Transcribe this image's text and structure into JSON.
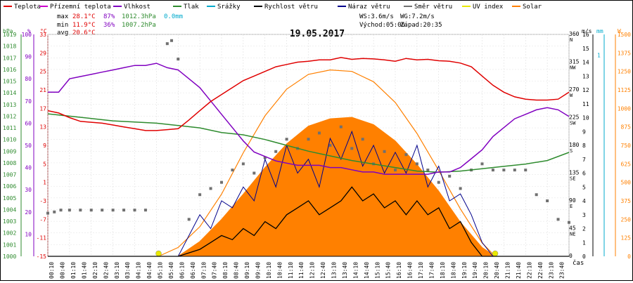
{
  "chart_data": {
    "type": "line",
    "date": "19.05.2017",
    "legend": [
      {
        "name": "Teplota",
        "color": "#e00000"
      },
      {
        "name": "Přízemní teplota",
        "color": "#cc00cc"
      },
      {
        "name": "Vlhkost",
        "color": "#8000c0"
      },
      {
        "name": "Tlak",
        "color": "#2e8b2e"
      },
      {
        "name": "Srážky",
        "color": "#00aacc"
      },
      {
        "name": "Rychlost větru",
        "color": "#000000"
      },
      {
        "name": "Náraz větru",
        "color": "#00008b"
      },
      {
        "name": "Směr větru",
        "color": "#707070"
      },
      {
        "name": "UV index",
        "color": "#e8e800"
      },
      {
        "name": "Solar",
        "color": "#ff8000"
      }
    ],
    "stats": {
      "max_label": "max",
      "max_t": "28.1°C",
      "max_h": "87%",
      "max_p": "1012.3hPa",
      "max_r": "0.0mm",
      "min_label": "min",
      "min_t": "11.9°C",
      "min_h": "36%",
      "min_p": "1007.2hPa",
      "avg_label": "avg",
      "avg_t": "20.6°C",
      "ws": "WS:3.6m/s",
      "wg": "WG:7.2m/s",
      "sunrise": "Východ:05:06",
      "sunset": "Západ:20:35"
    },
    "axes": {
      "hpa": {
        "unit": "hPa",
        "ticks": [
          "1019",
          "1018",
          "1017",
          "1016",
          "1015",
          "1014",
          "1013",
          "1012",
          "1011",
          "1010",
          "1009",
          "1008",
          "1007",
          "1006",
          "1005",
          "1004",
          "1003",
          "1002",
          "1001",
          "1000"
        ],
        "color": "#2e8b2e"
      },
      "pct": {
        "unit": "%",
        "ticks": [
          "100",
          "90",
          "80",
          "70",
          "60",
          "50",
          "40",
          "30",
          "20",
          "10"
        ],
        "color": "#8000c0"
      },
      "temp": {
        "unit": "°C",
        "ticks": [
          "33",
          "29",
          "25",
          "21",
          "17",
          "13",
          "9",
          "5",
          "1",
          "-3",
          "-7",
          "-11",
          "-15"
        ],
        "color": "#e00000"
      },
      "ms": {
        "unit": "m/s",
        "ticks": [
          "16",
          "15",
          "14",
          "13",
          "12",
          "11",
          "10",
          "9",
          "8",
          "7",
          "6",
          "5",
          "4",
          "3",
          "2",
          "1",
          "0"
        ],
        "color": "#000000"
      },
      "dir": {
        "ticks": [
          [
            "360",
            "N"
          ],
          [
            "315",
            "NW"
          ],
          [
            "270",
            "W"
          ],
          [
            "225",
            "SW"
          ],
          [
            "180",
            "S"
          ],
          [
            "135",
            "SE"
          ],
          [
            "90",
            "E"
          ],
          [
            "45",
            "NE"
          ],
          [
            "0",
            ""
          ]
        ],
        "color": "#000000"
      },
      "mm": {
        "unit": "mm",
        "ticks": [
          "1"
        ],
        "color": "#00aacc"
      },
      "w": {
        "unit": "W",
        "ticks": [
          "1500",
          "1375",
          "1250",
          "1125",
          "1000",
          "875",
          "750",
          "625",
          "500",
          "375",
          "250",
          "125",
          "0"
        ],
        "color": "#ff8000"
      },
      "time_label": "čas",
      "times": [
        "00:10",
        "00:40",
        "01:10",
        "01:40",
        "02:10",
        "02:40",
        "03:10",
        "03:40",
        "04:10",
        "04:40",
        "05:10",
        "05:40",
        "06:10",
        "06:40",
        "07:10",
        "07:40",
        "08:10",
        "08:40",
        "09:10",
        "09:40",
        "10:10",
        "10:40",
        "11:10",
        "11:40",
        "12:10",
        "12:40",
        "13:10",
        "13:40",
        "14:10",
        "14:40",
        "15:10",
        "15:40",
        "16:10",
        "16:40",
        "17:10",
        "17:40",
        "18:10",
        "18:40",
        "19:10",
        "19:40",
        "20:10",
        "20:40",
        "21:10",
        "21:40",
        "22:10",
        "22:40",
        "23:10",
        "23:40"
      ]
    },
    "x_range_hours": [
      0,
      24
    ],
    "series": [
      {
        "name": "Teplota",
        "unit": "°C",
        "x": [
          0,
          0.5,
          1,
          1.5,
          2,
          2.5,
          3,
          3.5,
          4,
          4.5,
          5,
          5.5,
          6,
          6.5,
          7,
          7.5,
          8,
          8.5,
          9,
          9.5,
          10,
          10.5,
          11,
          11.5,
          12,
          12.5,
          13,
          13.5,
          14,
          14.5,
          15,
          15.5,
          16,
          16.5,
          17,
          17.5,
          18,
          18.5,
          19,
          19.5,
          20,
          20.5,
          21,
          21.5,
          22,
          22.5,
          23,
          23.5,
          24
        ],
        "values": [
          16.5,
          16,
          15,
          14.2,
          14,
          13.8,
          13.4,
          13,
          12.6,
          12.2,
          12.2,
          12.4,
          12.6,
          14.5,
          16.5,
          18.5,
          20,
          21.5,
          23,
          24,
          25,
          26,
          26.5,
          27,
          27.2,
          27.5,
          27.5,
          28,
          27.6,
          27.8,
          27.7,
          27.5,
          27.2,
          27.8,
          27.5,
          27.6,
          27.3,
          27.2,
          26.8,
          26,
          24,
          22,
          20.5,
          19.5,
          19,
          18.8,
          18.8,
          19,
          20.5
        ]
      },
      {
        "name": "Vlhkost",
        "unit": "%",
        "x": [
          0,
          0.5,
          1,
          1.5,
          2,
          2.5,
          3,
          3.5,
          4,
          4.5,
          5,
          5.5,
          6,
          6.5,
          7,
          7.5,
          8,
          8.5,
          9,
          9.5,
          10,
          10.5,
          11,
          11.5,
          12,
          12.5,
          13,
          13.5,
          14,
          14.5,
          15,
          15.5,
          16,
          16.5,
          17,
          17.5,
          18,
          18.5,
          19,
          19.5,
          20,
          20.5,
          21,
          21.5,
          22,
          22.5,
          23,
          23.5,
          24
        ],
        "values": [
          74,
          74,
          80,
          81,
          82,
          83,
          84,
          85,
          86,
          86,
          87,
          85,
          84,
          80,
          76,
          70,
          64,
          58,
          52,
          47,
          45,
          43,
          42,
          41,
          41,
          41,
          40,
          40,
          39,
          38,
          38,
          37,
          37,
          37,
          37,
          37,
          38,
          38,
          40,
          44,
          48,
          54,
          58,
          62,
          64,
          66,
          67,
          66,
          63
        ]
      },
      {
        "name": "Tlak",
        "unit": "hPa",
        "x": [
          0,
          1,
          2,
          3,
          4,
          5,
          6,
          7,
          8,
          9,
          10,
          11,
          12,
          13,
          14,
          15,
          16,
          17,
          18,
          19,
          20,
          21,
          22,
          23,
          24
        ],
        "values": [
          1012.2,
          1012.0,
          1011.8,
          1011.6,
          1011.5,
          1011.4,
          1011.2,
          1011.0,
          1010.6,
          1010.4,
          1010.0,
          1009.5,
          1009.0,
          1008.6,
          1008.2,
          1007.9,
          1007.6,
          1007.3,
          1007.2,
          1007.3,
          1007.5,
          1007.7,
          1007.9,
          1008.2,
          1008.9
        ]
      },
      {
        "name": "Solar",
        "unit": "W",
        "x": [
          5.1,
          6,
          7,
          8,
          9,
          10,
          11,
          12,
          13,
          14,
          15,
          16,
          17,
          18,
          19,
          20,
          20.6
        ],
        "values": [
          0,
          0,
          100,
          250,
          420,
          600,
          760,
          880,
          930,
          940,
          890,
          780,
          620,
          440,
          230,
          60,
          0
        ]
      },
      {
        "name": "UV index",
        "unit": "W-scale",
        "x": [
          5.1,
          6,
          7,
          8,
          9,
          10,
          11,
          12,
          13,
          14,
          15,
          16,
          17,
          18,
          19,
          20,
          20.6
        ],
        "values": [
          0,
          60,
          200,
          420,
          700,
          950,
          1130,
          1230,
          1260,
          1250,
          1180,
          1040,
          830,
          580,
          320,
          90,
          0
        ]
      },
      {
        "name": "Rychlost větru",
        "unit": "m/s",
        "x": [
          0,
          5,
          6,
          7,
          7.5,
          8,
          8.5,
          9,
          9.5,
          10,
          10.5,
          11,
          11.5,
          12,
          12.5,
          13,
          13.5,
          14,
          14.5,
          15,
          15.5,
          16,
          16.5,
          17,
          17.5,
          18,
          18.5,
          19,
          19.5,
          20,
          24
        ],
        "values": [
          0,
          0,
          0,
          0.5,
          1,
          1.5,
          1.2,
          2,
          1.5,
          2.5,
          2,
          3,
          3.5,
          4,
          3,
          3.5,
          4,
          5,
          4,
          4.5,
          3.5,
          4,
          3,
          4,
          3,
          3.5,
          2,
          2.5,
          1,
          0,
          0
        ]
      },
      {
        "name": "Náraz větru",
        "unit": "m/s",
        "x": [
          6,
          6.5,
          7,
          7.5,
          8,
          8.5,
          9,
          9.5,
          10,
          10.5,
          11,
          11.5,
          12,
          12.5,
          13,
          13.5,
          14,
          14.5,
          15,
          15.5,
          16,
          16.5,
          17,
          17.5,
          18,
          18.5,
          19,
          19.5,
          20,
          20.5
        ],
        "values": [
          0,
          1.5,
          3,
          2,
          4,
          3.5,
          5,
          4,
          7,
          5,
          8,
          6,
          7,
          5,
          8.5,
          7,
          9,
          6.5,
          8,
          6,
          7.5,
          6,
          8,
          5,
          6.5,
          4,
          4.5,
          3,
          1,
          0
        ]
      },
      {
        "name": "Směr větru",
        "unit": "°",
        "x": [
          0,
          0.3,
          0.6,
          1,
          1.5,
          2,
          2.5,
          3,
          3.5,
          4,
          4.5,
          5.5,
          5.7,
          6,
          6.5,
          7,
          7.5,
          8,
          8.5,
          9,
          9.5,
          10,
          10.5,
          11,
          11.5,
          12,
          12.5,
          13,
          13.5,
          14,
          14.5,
          15,
          15.5,
          16,
          16.5,
          17,
          17.5,
          18,
          18.5,
          19,
          19.5,
          20,
          20.5,
          21,
          21.5,
          22,
          22.5,
          23,
          23.5,
          24
        ],
        "values": [
          70,
          72,
          75,
          75,
          75,
          75,
          75,
          75,
          75,
          75,
          75,
          345,
          350,
          320,
          60,
          100,
          110,
          120,
          140,
          150,
          135,
          160,
          170,
          190,
          175,
          190,
          200,
          180,
          210,
          175,
          190,
          150,
          170,
          140,
          165,
          150,
          140,
          120,
          130,
          110,
          140,
          150,
          140,
          140,
          140,
          140,
          100,
          90,
          60,
          55
        ]
      }
    ]
  }
}
